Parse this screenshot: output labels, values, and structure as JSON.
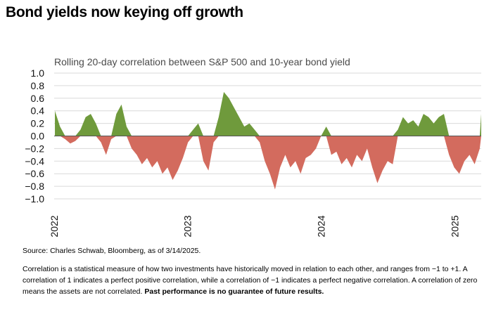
{
  "headline": "Bond yields now keying off growth",
  "source": "Source: Charles Schwab, Bloomberg, as of 3/14/2025.",
  "note": "Correlation is a statistical measure of how two investments have historically moved in relation to each other, and ranges from −1 to +1. A correlation of 1 indicates a perfect positive correlation, while a correlation of −1 indicates a perfect negative correlation. A correlation of zero means the assets are not correlated.",
  "disclaimer": "Past performance is no guarantee of future results.",
  "colors": {
    "positive": "#6f9a3c",
    "negative": "#d36b5e",
    "grid": "#d9d9d9",
    "zero_line": "#555555"
  },
  "chart_data": {
    "type": "area",
    "title": "Rolling 20-day correlation between S&P 500 and 10-year bond yield",
    "xlabel": "",
    "ylabel": "",
    "xlim": [
      "2022-01-01",
      "2025-03-14"
    ],
    "ylim": [
      -1.0,
      1.0
    ],
    "yticks": [
      "1.0",
      "0.8",
      "0.6",
      "0.4",
      "0.2",
      "0.0",
      "−0.2",
      "−0.4",
      "−0.6",
      "−0.8",
      "−1.0"
    ],
    "xticks": [
      "2022",
      "2023",
      "2024",
      "2025"
    ],
    "grid": true,
    "x": [
      "2022-01-03",
      "2022-01-17",
      "2022-01-31",
      "2022-02-14",
      "2022-02-28",
      "2022-03-14",
      "2022-03-28",
      "2022-04-11",
      "2022-04-25",
      "2022-05-09",
      "2022-05-23",
      "2022-06-06",
      "2022-06-20",
      "2022-07-04",
      "2022-07-18",
      "2022-08-01",
      "2022-08-15",
      "2022-08-29",
      "2022-09-12",
      "2022-09-26",
      "2022-10-10",
      "2022-10-24",
      "2022-11-07",
      "2022-11-21",
      "2022-12-05",
      "2022-12-19",
      "2023-01-02",
      "2023-01-16",
      "2023-01-30",
      "2023-02-13",
      "2023-02-27",
      "2023-03-13",
      "2023-03-27",
      "2023-04-10",
      "2023-04-24",
      "2023-05-08",
      "2023-05-22",
      "2023-06-05",
      "2023-06-19",
      "2023-07-03",
      "2023-07-17",
      "2023-07-31",
      "2023-08-14",
      "2023-08-28",
      "2023-09-11",
      "2023-09-25",
      "2023-10-09",
      "2023-10-23",
      "2023-11-06",
      "2023-11-20",
      "2023-12-04",
      "2023-12-18",
      "2024-01-01",
      "2024-01-15",
      "2024-01-29",
      "2024-02-12",
      "2024-02-26",
      "2024-03-11",
      "2024-03-25",
      "2024-04-08",
      "2024-04-22",
      "2024-05-06",
      "2024-05-20",
      "2024-06-03",
      "2024-06-17",
      "2024-07-01",
      "2024-07-15",
      "2024-07-29",
      "2024-08-12",
      "2024-08-26",
      "2024-09-09",
      "2024-09-23",
      "2024-10-07",
      "2024-10-21",
      "2024-11-04",
      "2024-11-18",
      "2024-12-02",
      "2024-12-16",
      "2024-12-30",
      "2025-01-13",
      "2025-01-27",
      "2025-02-10",
      "2025-02-24",
      "2025-03-10",
      "2025-03-14"
    ],
    "values": [
      0.4,
      0.15,
      -0.05,
      -0.12,
      -0.08,
      0.1,
      0.3,
      0.35,
      0.2,
      -0.1,
      -0.3,
      -0.05,
      0.35,
      0.5,
      0.15,
      -0.2,
      -0.3,
      -0.45,
      -0.35,
      -0.5,
      -0.4,
      -0.6,
      -0.5,
      -0.7,
      -0.55,
      -0.35,
      -0.1,
      0.1,
      0.2,
      -0.4,
      -0.55,
      -0.1,
      0.3,
      0.7,
      0.6,
      0.45,
      0.3,
      0.15,
      0.2,
      0.1,
      -0.1,
      -0.4,
      -0.6,
      -0.85,
      -0.5,
      -0.3,
      -0.5,
      -0.4,
      -0.6,
      -0.35,
      -0.3,
      -0.2,
      0.0,
      0.15,
      -0.3,
      -0.25,
      -0.45,
      -0.35,
      -0.5,
      -0.3,
      -0.4,
      -0.2,
      -0.5,
      -0.75,
      -0.55,
      -0.4,
      -0.45,
      0.1,
      0.3,
      0.2,
      0.25,
      0.15,
      0.35,
      0.3,
      0.2,
      0.3,
      0.35,
      -0.3,
      -0.5,
      -0.6,
      -0.4,
      -0.3,
      -0.45,
      -0.2,
      0.35
    ]
  }
}
